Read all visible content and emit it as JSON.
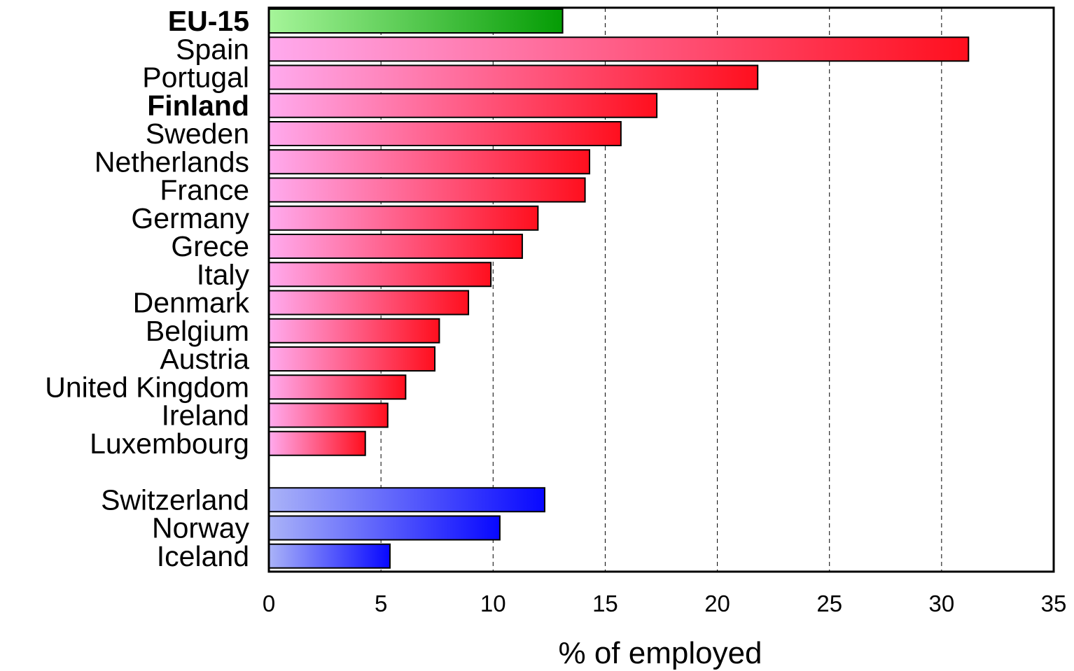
{
  "chart_data": {
    "type": "bar",
    "orientation": "horizontal",
    "xlabel": "% of employed",
    "ylabel": "",
    "xlim": [
      0,
      35
    ],
    "x_ticks": [
      0,
      5,
      10,
      15,
      20,
      25,
      30,
      35
    ],
    "grid": "vertical dashed",
    "colors": {
      "eu_average": [
        "#a6f59a",
        "#049c04"
      ],
      "eu_member": [
        "#ffaaee",
        "#ff0f1e"
      ],
      "non_eu": [
        "#aab3f8",
        "#0808ff"
      ]
    },
    "categories": [
      {
        "label": "EU-15",
        "value": 13.1,
        "group": "eu_average",
        "bold": true
      },
      {
        "label": "Spain",
        "value": 31.2,
        "group": "eu_member",
        "bold": false
      },
      {
        "label": "Portugal",
        "value": 21.8,
        "group": "eu_member",
        "bold": false
      },
      {
        "label": "Finland",
        "value": 17.3,
        "group": "eu_member",
        "bold": true
      },
      {
        "label": "Sweden",
        "value": 15.7,
        "group": "eu_member",
        "bold": false
      },
      {
        "label": "Netherlands",
        "value": 14.3,
        "group": "eu_member",
        "bold": false
      },
      {
        "label": "France",
        "value": 14.1,
        "group": "eu_member",
        "bold": false
      },
      {
        "label": "Germany",
        "value": 12.0,
        "group": "eu_member",
        "bold": false
      },
      {
        "label": "Grece",
        "value": 11.3,
        "group": "eu_member",
        "bold": false
      },
      {
        "label": "Italy",
        "value": 9.9,
        "group": "eu_member",
        "bold": false
      },
      {
        "label": "Denmark",
        "value": 8.9,
        "group": "eu_member",
        "bold": false
      },
      {
        "label": "Belgium",
        "value": 7.6,
        "group": "eu_member",
        "bold": false
      },
      {
        "label": "Austria",
        "value": 7.4,
        "group": "eu_member",
        "bold": false
      },
      {
        "label": "United Kingdom",
        "value": 6.1,
        "group": "eu_member",
        "bold": false
      },
      {
        "label": "Ireland",
        "value": 5.3,
        "group": "eu_member",
        "bold": false
      },
      {
        "label": "Luxembourg",
        "value": 4.3,
        "group": "eu_member",
        "bold": false
      },
      {
        "label": "Switzerland",
        "value": 12.3,
        "group": "non_eu",
        "bold": false
      },
      {
        "label": "Norway",
        "value": 10.3,
        "group": "non_eu",
        "bold": false
      },
      {
        "label": "Iceland",
        "value": 5.4,
        "group": "non_eu",
        "bold": false
      }
    ]
  }
}
